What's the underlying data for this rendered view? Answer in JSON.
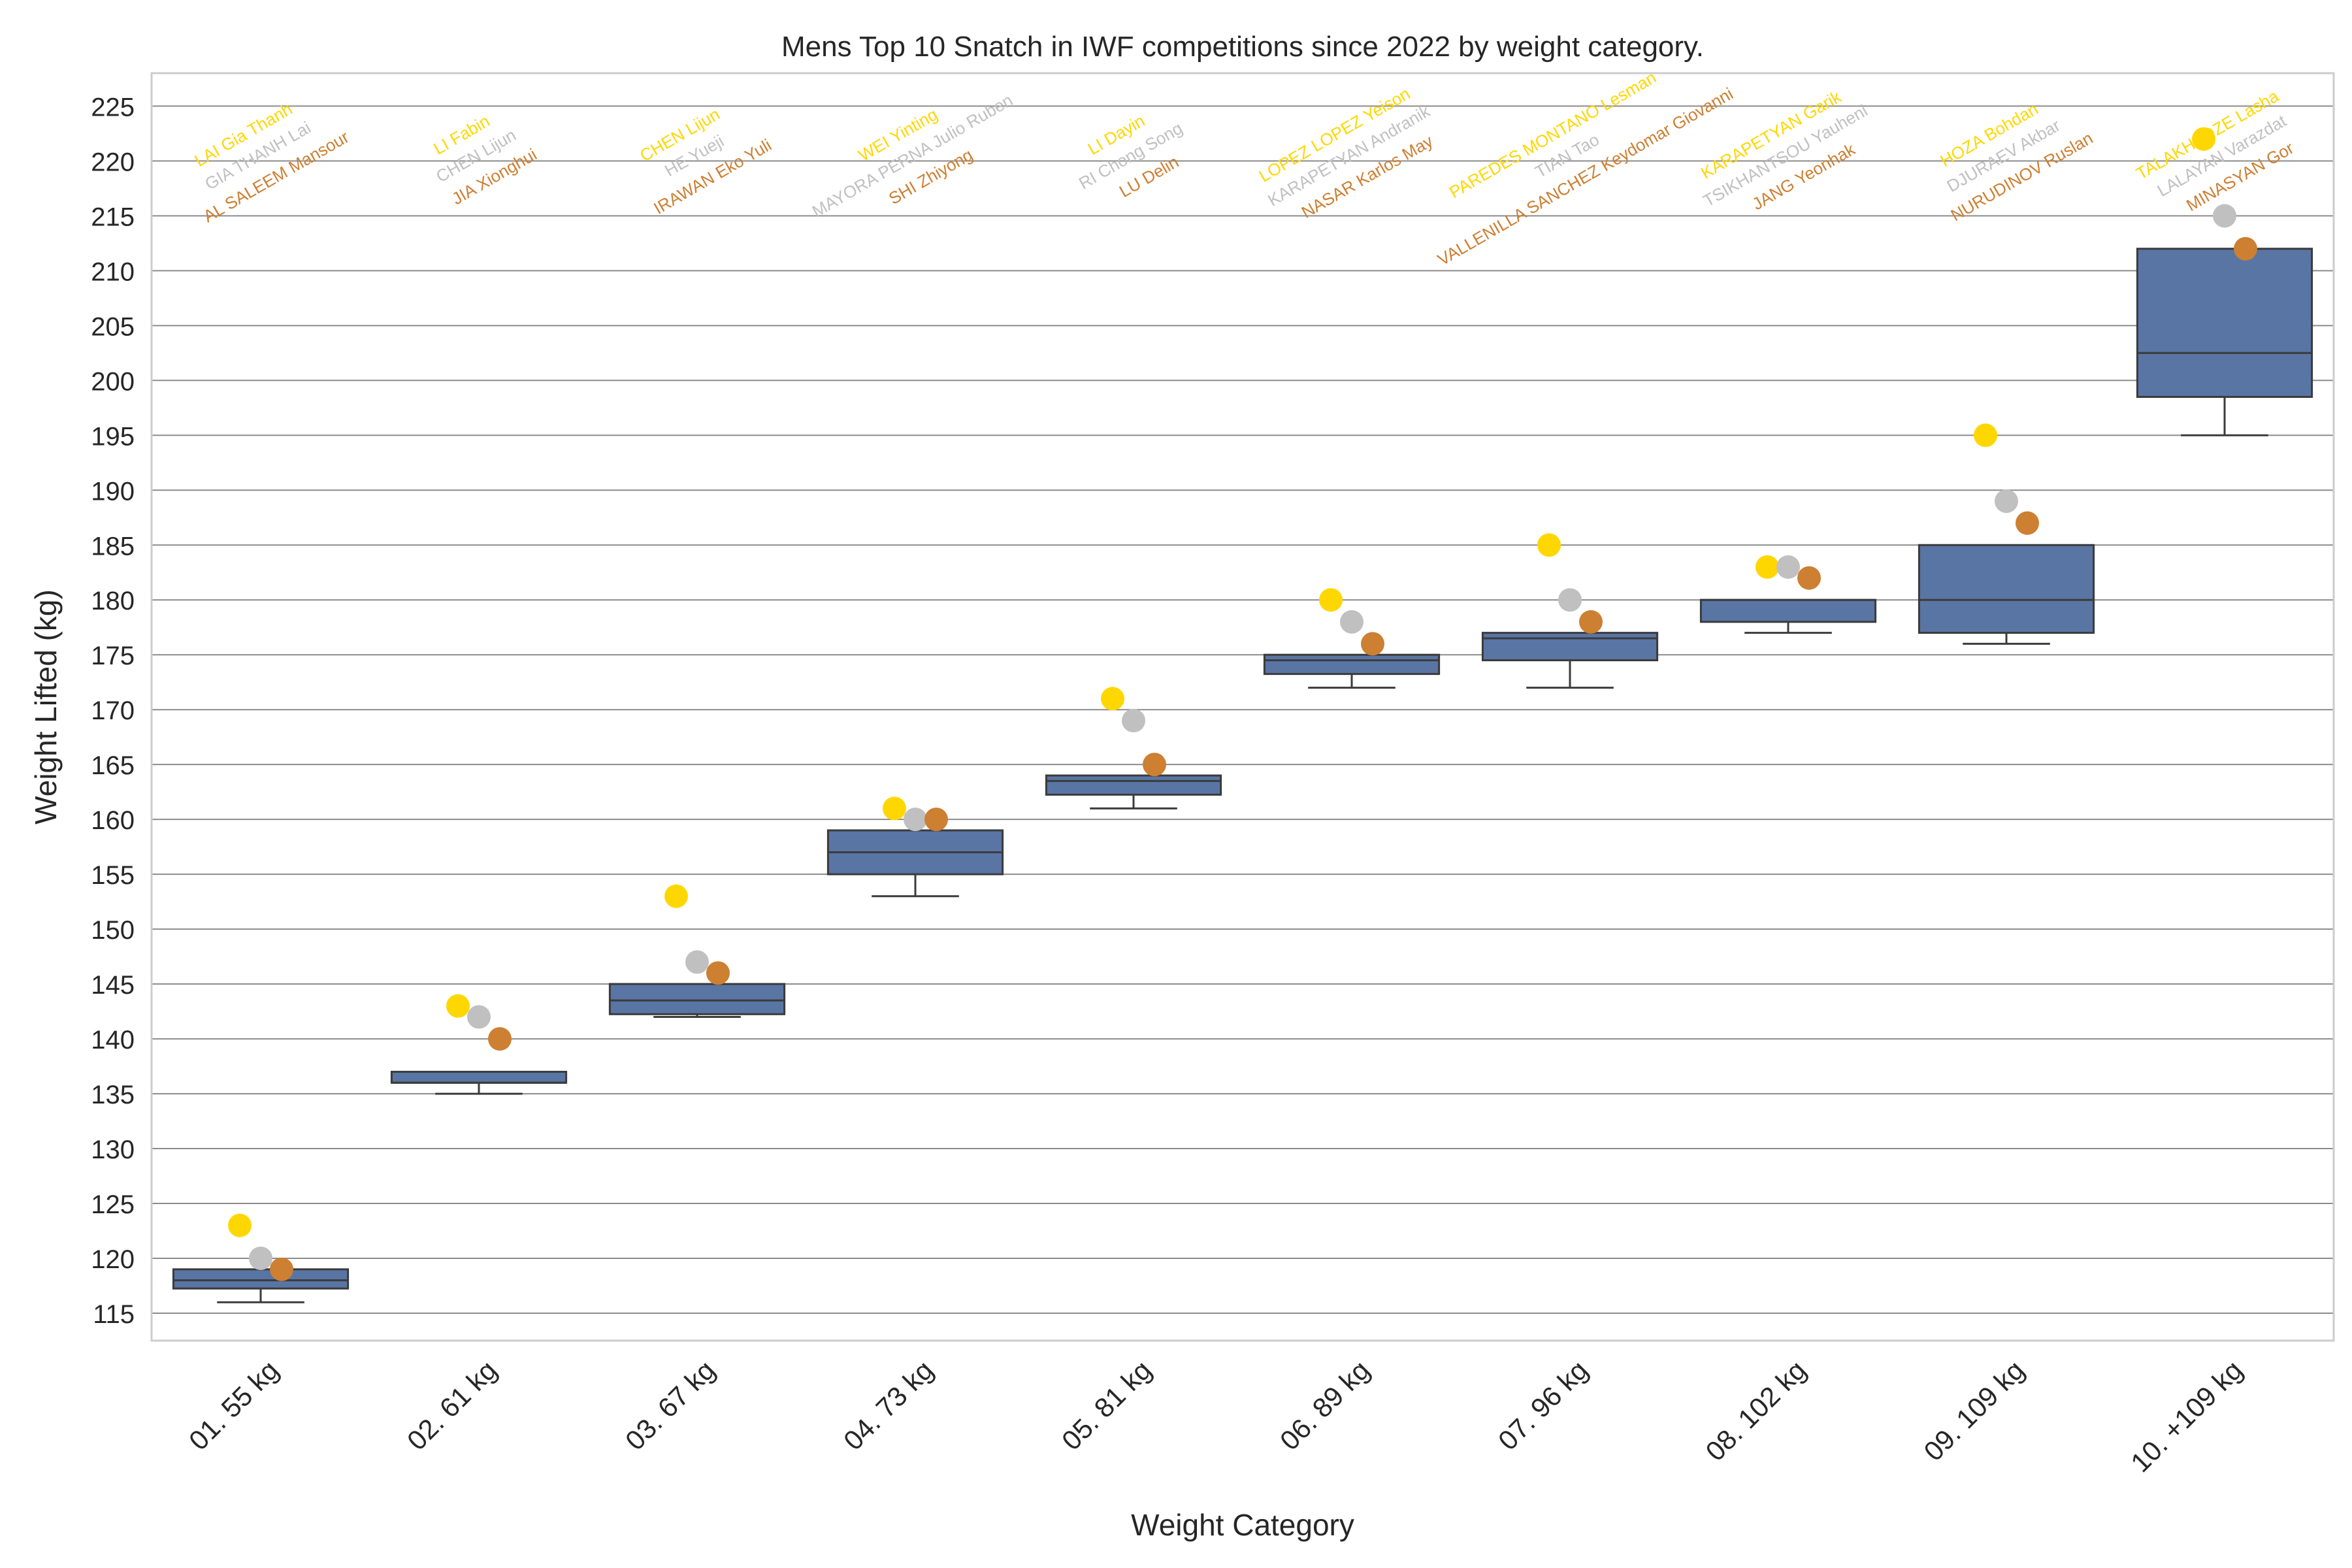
{
  "chart_data": {
    "type": "box",
    "title": "Mens Top 10 Snatch in IWF competitions since 2022 by weight category.",
    "xlabel": "Weight Category",
    "ylabel": "Weight Lifted (kg)",
    "ylim": [
      112.5,
      228
    ],
    "yticks": [
      115,
      120,
      125,
      130,
      135,
      140,
      145,
      150,
      155,
      160,
      165,
      170,
      175,
      180,
      185,
      190,
      195,
      200,
      205,
      210,
      215,
      220,
      225
    ],
    "grid": "horizontal",
    "colors": {
      "box": "#5975a4",
      "box_line": "#3b3b3b",
      "gold": "#ffd700",
      "silver": "#c0c0c0",
      "bronze": "#cd7f32",
      "grid": "#8c8c8c",
      "frame": "#cccccc"
    },
    "categories": [
      {
        "label": "01. 55 kg",
        "box": {
          "whisker_low": 116,
          "q1": 117.25,
          "median": 118,
          "q3": 119,
          "whisker_high": 119
        },
        "medals": {
          "gold": 123,
          "silver": 120,
          "bronze": 119
        },
        "names": {
          "gold": "LAI Gia Thanh",
          "silver": "GIA THANH Lai",
          "bronze": "AL SALEEM Mansour"
        }
      },
      {
        "label": "02. 61 kg",
        "box": {
          "whisker_low": 135,
          "q1": 136,
          "median": 136,
          "q3": 137,
          "whisker_high": 137
        },
        "medals": {
          "gold": 143,
          "silver": 142,
          "bronze": 140
        },
        "names": {
          "gold": "LI Fabin",
          "silver": "CHEN Lijun",
          "bronze": "JIA Xionghui"
        }
      },
      {
        "label": "03. 67 kg",
        "box": {
          "whisker_low": 142,
          "q1": 142.25,
          "median": 143.5,
          "q3": 145,
          "whisker_high": 145
        },
        "medals": {
          "gold": 153,
          "silver": 147,
          "bronze": 146
        },
        "names": {
          "gold": "CHEN Lijun",
          "silver": "HE Yueji",
          "bronze": "IRAWAN Eko Yuli"
        }
      },
      {
        "label": "04. 73 kg",
        "box": {
          "whisker_low": 153,
          "q1": 155,
          "median": 157,
          "q3": 159,
          "whisker_high": 159
        },
        "medals": {
          "gold": 161,
          "silver": 160,
          "bronze": 160
        },
        "names": {
          "gold": "WEI Yinting",
          "silver": "MAYORA PERNA Julio Ruben",
          "bronze": "SHI Zhiyong"
        }
      },
      {
        "label": "05. 81 kg",
        "box": {
          "whisker_low": 161,
          "q1": 162.25,
          "median": 163.5,
          "q3": 164,
          "whisker_high": 164
        },
        "medals": {
          "gold": 171,
          "silver": 169,
          "bronze": 165
        },
        "names": {
          "gold": "LI Dayin",
          "silver": "RI Chong Song",
          "bronze": "LU Delin"
        }
      },
      {
        "label": "06. 89 kg",
        "box": {
          "whisker_low": 172,
          "q1": 173.25,
          "median": 174.5,
          "q3": 175,
          "whisker_high": 175
        },
        "medals": {
          "gold": 180,
          "silver": 178,
          "bronze": 176
        },
        "names": {
          "gold": "LOPEZ LOPEZ Yeison",
          "silver": "KARAPETYAN Andranik",
          "bronze": "NASAR Karlos May"
        }
      },
      {
        "label": "07. 96 kg",
        "box": {
          "whisker_low": 172,
          "q1": 174.5,
          "median": 176.5,
          "q3": 177,
          "whisker_high": 177
        },
        "medals": {
          "gold": 185,
          "silver": 180,
          "bronze": 178
        },
        "names": {
          "gold": "PAREDES MONTANO Lesman",
          "silver": "TIAN Tao",
          "bronze": "VALLENILLA SANCHEZ Keydomar Giovanni"
        }
      },
      {
        "label": "08. 102 kg",
        "box": {
          "whisker_low": 177,
          "q1": 178,
          "median": 180,
          "q3": 180,
          "whisker_high": 180
        },
        "medals": {
          "gold": 183,
          "silver": 183,
          "bronze": 182
        },
        "names": {
          "gold": "KARAPETYAN Garik",
          "silver": "TSIKHANTSOU Yauheni",
          "bronze": "JANG Yeonhak"
        }
      },
      {
        "label": "09. 109 kg",
        "box": {
          "whisker_low": 176,
          "q1": 177,
          "median": 180,
          "q3": 185,
          "whisker_high": 185
        },
        "medals": {
          "gold": 195,
          "silver": 189,
          "bronze": 187
        },
        "names": {
          "gold": "HOZA Bohdan",
          "silver": "DJURAEV Akbar",
          "bronze": "NURUDINOV Ruslan"
        }
      },
      {
        "label": "10. +109 kg",
        "box": {
          "whisker_low": 195,
          "q1": 198.5,
          "median": 202.5,
          "q3": 212,
          "whisker_high": 212
        },
        "medals": {
          "gold": 222,
          "silver": 215,
          "bronze": 212
        },
        "names": {
          "gold": "TALAKHADZE Lasha",
          "silver": "LALAYAN Varazdat",
          "bronze": "MINASYAN Gor"
        }
      }
    ]
  }
}
